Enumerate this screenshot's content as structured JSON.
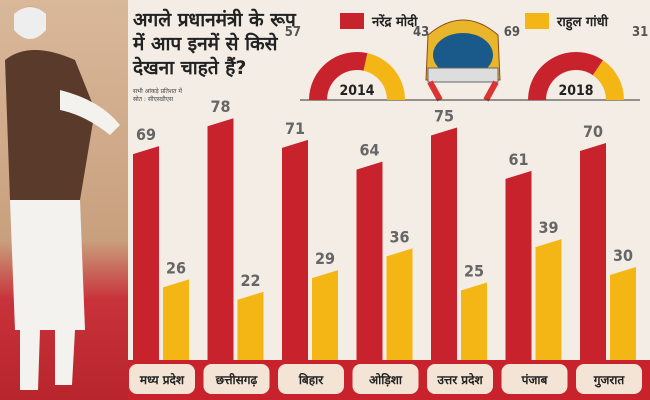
{
  "title": "अगले प्रधानमंत्री के रूप में आप इनमें से किसे देखना चाहते हैं?",
  "note": [
    "सभी आंकड़े प्रतिशत में",
    "स्रोत : सीएसडीएस"
  ],
  "legend": [
    {
      "name": "नरेंद्र मोदी",
      "color": "#c8222c"
    },
    {
      "name": "राहुल गांधी",
      "color": "#f4b615"
    }
  ],
  "chart_data": [
    {
      "type": "pie",
      "subtype": "half-donut",
      "label": "2014",
      "series": [
        {
          "name": "नरेंद्र मोदी",
          "value": 57
        },
        {
          "name": "राहुल गांधी",
          "value": 43
        }
      ]
    },
    {
      "type": "pie",
      "subtype": "half-donut",
      "label": "2018",
      "series": [
        {
          "name": "नरेंद्र मोदी",
          "value": 69
        },
        {
          "name": "राहुल गांधी",
          "value": 31
        }
      ]
    },
    {
      "type": "bar",
      "categories": [
        "मध्य प्रदेश",
        "छत्तीसगढ़",
        "बिहार",
        "ओड़िशा",
        "उत्तर प्रदेश",
        "पंजाब",
        "गुजरात"
      ],
      "series": [
        {
          "name": "नरेंद्र मोदी",
          "values": [
            69,
            78,
            71,
            64,
            75,
            61,
            70
          ]
        },
        {
          "name": "राहुल गांधी",
          "values": [
            26,
            22,
            29,
            36,
            25,
            39,
            30
          ]
        }
      ],
      "ylim": [
        0,
        80
      ],
      "grid": false
    }
  ]
}
